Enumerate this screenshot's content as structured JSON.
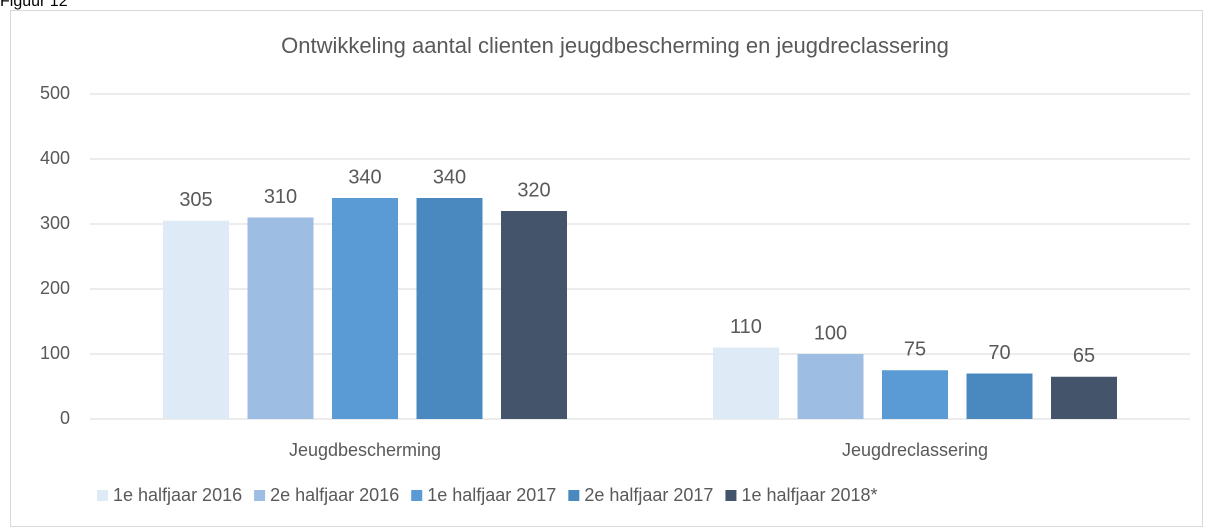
{
  "figure_label": "Figuur 12",
  "chart_data": {
    "type": "bar",
    "title": "Ontwikkeling aantal clienten jeugdbescherming en jeugdreclassering",
    "categories": [
      "Jeugdbescherming",
      "Jeugdreclassering"
    ],
    "series": [
      {
        "name": "1e halfjaar 2016",
        "color": "#deebf7",
        "values": [
          305,
          110
        ]
      },
      {
        "name": "2e halfjaar 2016",
        "color": "#9dbde2",
        "values": [
          310,
          100
        ]
      },
      {
        "name": "1e halfjaar 2017",
        "color": "#5b9bd5",
        "values": [
          340,
          75
        ]
      },
      {
        "name": "2e halfjaar 2017",
        "color": "#4a89c0",
        "values": [
          340,
          70
        ]
      },
      {
        "name": "1e halfjaar 2018*",
        "color": "#44546a",
        "values": [
          320,
          65
        ]
      }
    ],
    "ylim": [
      0,
      500
    ],
    "yticks": [
      0,
      100,
      200,
      300,
      400,
      500
    ],
    "grid": true,
    "legend": "bottom"
  }
}
